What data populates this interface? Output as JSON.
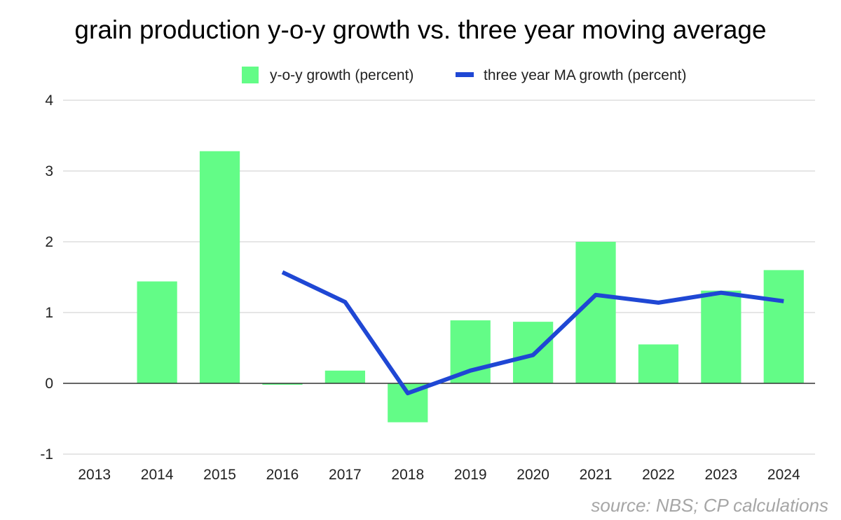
{
  "chart_data": {
    "type": "bar",
    "title": "grain production y-o-y growth vs. three year moving average",
    "categories": [
      "2013",
      "2014",
      "2015",
      "2016",
      "2017",
      "2018",
      "2019",
      "2020",
      "2021",
      "2022",
      "2023",
      "2024"
    ],
    "series": [
      {
        "name": "y-o-y growth (percent)",
        "type": "bar",
        "color": "#63fc87",
        "values": [
          0,
          1.44,
          3.28,
          -0.02,
          0.18,
          -0.55,
          0.89,
          0.87,
          2.0,
          0.55,
          1.31,
          1.6
        ]
      },
      {
        "name": "three year MA growth (percent)",
        "type": "line",
        "color": "#1f47d4",
        "values": [
          null,
          null,
          null,
          1.57,
          1.15,
          -0.14,
          0.18,
          0.4,
          1.25,
          1.14,
          1.28,
          1.16
        ]
      }
    ],
    "ylim": [
      -1,
      4
    ],
    "yticks": [
      -1,
      0,
      1,
      2,
      3,
      4
    ],
    "grid": true,
    "legend_position": "top",
    "xlabel": "",
    "ylabel": ""
  },
  "source_note": "source: NBS; CP calculations"
}
